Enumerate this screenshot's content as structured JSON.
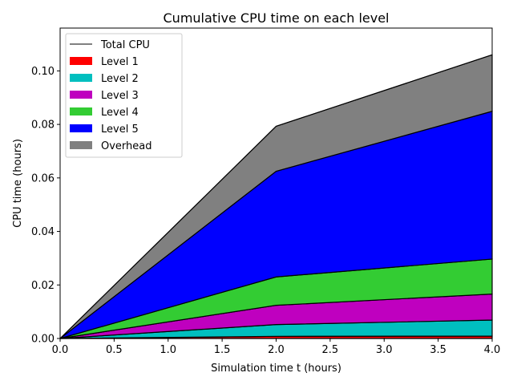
{
  "chart_data": {
    "type": "area",
    "stacked": true,
    "title": "Cumulative CPU time on each level",
    "xlabel": "Simulation time t (hours)",
    "ylabel": "CPU time (hours)",
    "xlim": [
      0,
      4
    ],
    "ylim": [
      0,
      0.116
    ],
    "xticks": [
      "0.0",
      "0.5",
      "1.0",
      "1.5",
      "2.0",
      "2.5",
      "3.0",
      "3.5",
      "4.0"
    ],
    "yticks": [
      "0.00",
      "0.02",
      "0.04",
      "0.06",
      "0.08",
      "0.10"
    ],
    "xtick_values": [
      0,
      0.5,
      1,
      1.5,
      2,
      2.5,
      3,
      3.5,
      4
    ],
    "ytick_values": [
      0,
      0.02,
      0.04,
      0.06,
      0.08,
      0.1
    ],
    "x": [
      0,
      2,
      4
    ],
    "series": [
      {
        "name": "Level 1",
        "color": "#ff0000",
        "values": [
          0,
          0.0008,
          0.0009
        ]
      },
      {
        "name": "Level 2",
        "color": "#00bfbf",
        "values": [
          0,
          0.0044,
          0.006
        ]
      },
      {
        "name": "Level 3",
        "color": "#bf00bf",
        "values": [
          0,
          0.0072,
          0.0097
        ]
      },
      {
        "name": "Level 4",
        "color": "#33cc33",
        "values": [
          0,
          0.0106,
          0.0131
        ]
      },
      {
        "name": "Level 5",
        "color": "#0000ff",
        "values": [
          0,
          0.0395,
          0.0552
        ]
      },
      {
        "name": "Overhead",
        "color": "#808080",
        "values": [
          0,
          0.0168,
          0.0211
        ]
      }
    ],
    "total_line": {
      "name": "Total CPU",
      "color": "#000000",
      "values": [
        0,
        0.0793,
        0.106
      ]
    },
    "legend_position": "top-left",
    "grid": false
  }
}
